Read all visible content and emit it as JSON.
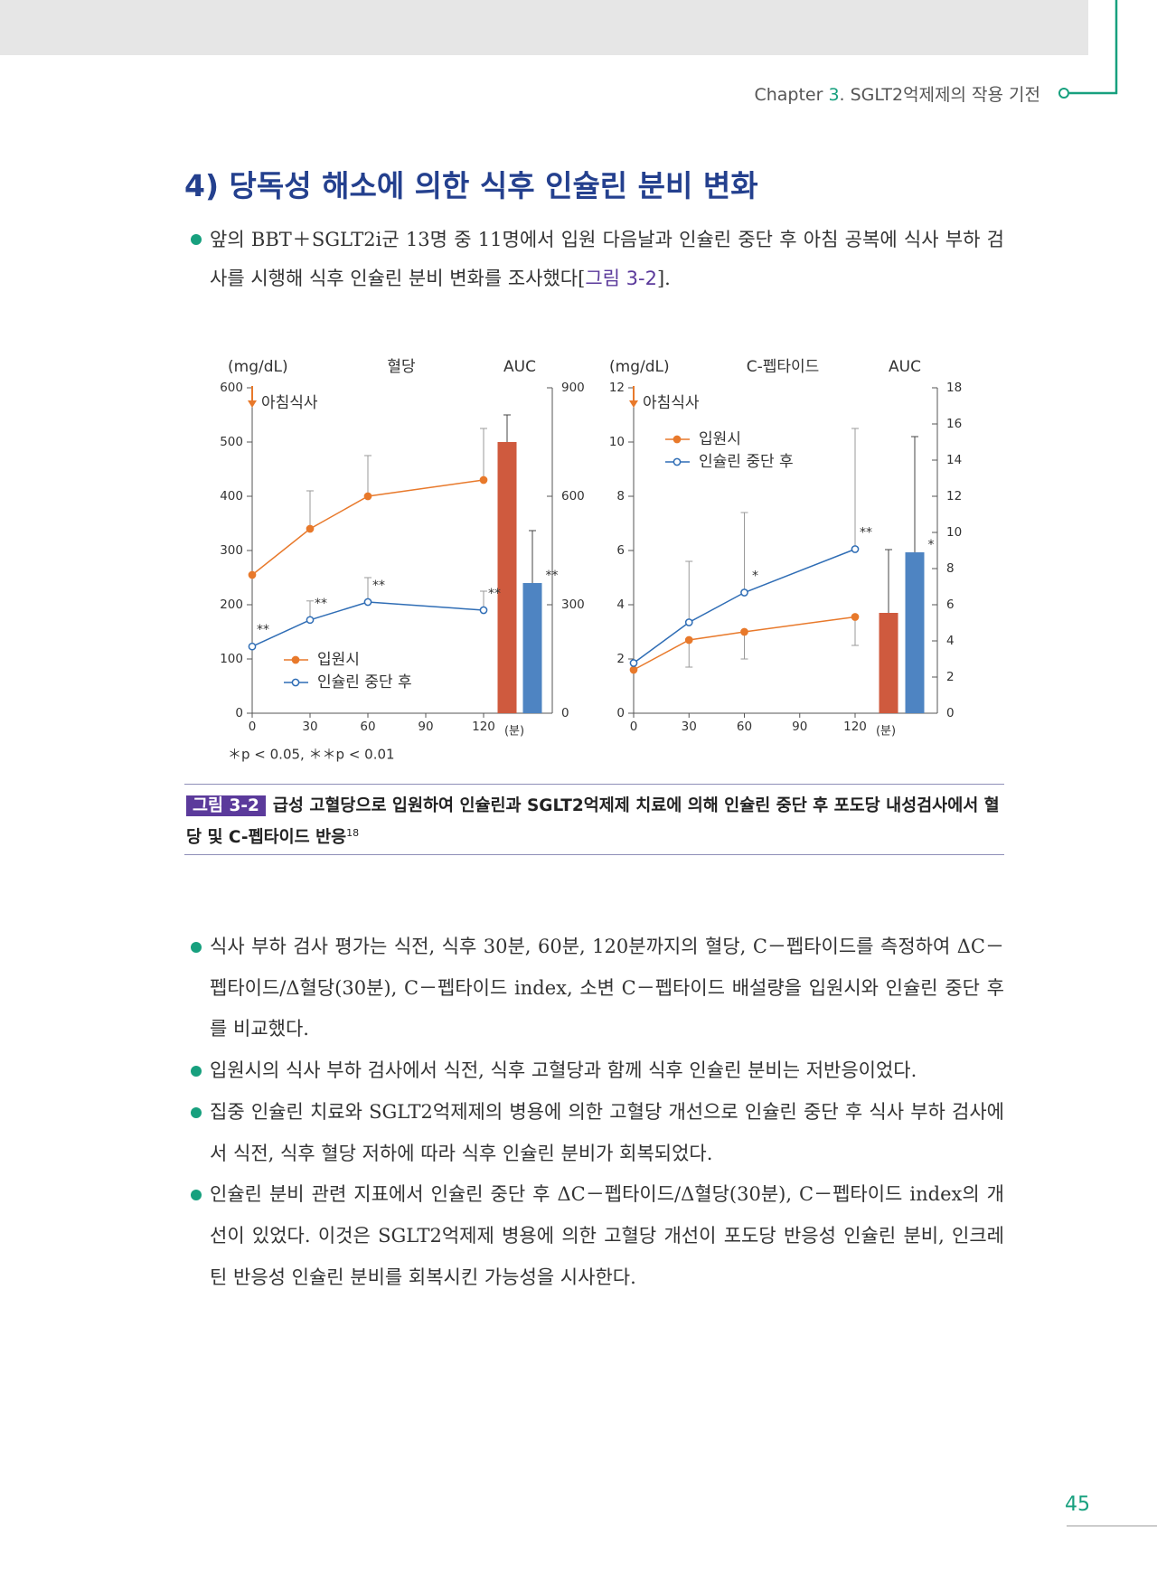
{
  "header": {
    "chapter": "Chapter",
    "number": "3",
    "title": ". SGLT2억제제의 작용 기전"
  },
  "section_title": "4) 당독성 해소에 의한 식후 인슐린 분비 변화",
  "intro": {
    "text": "앞의 BBT＋SGLT2i군 13명 중 11명에서 입원 다음날과 인슐린 중단 후 아침 공복에 식사 부하 검사를 시행해 식후 인슐린 분비 변화를 조사했다[",
    "ref": "그림 3-2",
    "end": "]."
  },
  "chart_data": [
    {
      "type": "line",
      "title": "혈당",
      "y_label": "(mg/dL)",
      "y2_label": "AUC",
      "x_unit": "(분)",
      "annotation": {
        "text": "아침식사",
        "x": 0
      },
      "xlim": [
        0,
        120
      ],
      "xticks": [
        0,
        30,
        60,
        90,
        120
      ],
      "ylim": [
        0,
        600
      ],
      "yticks": [
        0,
        100,
        200,
        300,
        400,
        500,
        600
      ],
      "y2lim": [
        0,
        900
      ],
      "y2ticks": [
        0,
        300,
        600,
        900
      ],
      "legend": "lower left",
      "x": [
        0,
        30,
        60,
        120
      ],
      "series": [
        {
          "name": "입원시",
          "color": "#e8792b",
          "values": [
            255,
            340,
            400,
            430
          ],
          "errors": [
            null,
            70,
            75,
            95
          ],
          "error_direction": "up",
          "significance": [
            null,
            null,
            null,
            null
          ]
        },
        {
          "name": "인슐린 중단 후",
          "color": "#2f6db5",
          "values": [
            123,
            172,
            205,
            190
          ],
          "errors": [
            null,
            35,
            45,
            35
          ],
          "error_direction": "up",
          "significance": [
            "**",
            "**",
            "**",
            "**"
          ]
        }
      ],
      "auc": {
        "values": [
          750,
          360
        ],
        "errors": [
          75,
          145
        ],
        "colors": [
          "#cf5a3e",
          "#4e84c2"
        ],
        "significance": [
          null,
          "**"
        ],
        "axis": "y2"
      },
      "note": "＊p < 0.05, ＊＊p < 0.01"
    },
    {
      "type": "line",
      "title": "C-펩타이드",
      "y_label": "(mg/dL)",
      "y2_label": "AUC",
      "x_unit": "(분)",
      "annotation": {
        "text": "아침식사",
        "x": 0
      },
      "xlim": [
        0,
        120
      ],
      "xticks": [
        0,
        30,
        60,
        90,
        120
      ],
      "ylim": [
        0,
        12
      ],
      "yticks": [
        0,
        2,
        4,
        6,
        8,
        10,
        12
      ],
      "y2lim": [
        0,
        18
      ],
      "y2ticks": [
        0,
        2,
        4,
        6,
        8,
        10,
        12,
        14,
        16,
        18
      ],
      "legend": "upper left",
      "x": [
        0,
        30,
        60,
        120
      ],
      "series": [
        {
          "name": "입원시",
          "color": "#e8792b",
          "values": [
            1.6,
            2.7,
            3.0,
            3.55
          ],
          "errors": [
            null,
            1.0,
            1.0,
            1.05
          ],
          "error_direction": "down",
          "significance": [
            null,
            null,
            null,
            null
          ]
        },
        {
          "name": "인슐린 중단 후",
          "color": "#2f6db5",
          "values": [
            1.85,
            3.35,
            4.45,
            6.05
          ],
          "errors": [
            null,
            2.25,
            2.95,
            4.45
          ],
          "error_direction": "up",
          "significance": [
            null,
            null,
            "*",
            "**"
          ]
        }
      ],
      "auc": {
        "values": [
          5.55,
          8.9
        ],
        "errors": [
          3.5,
          6.4
        ],
        "colors": [
          "#cf5a3e",
          "#4e84c2"
        ],
        "significance": [
          null,
          "*"
        ],
        "axis": "y2"
      }
    }
  ],
  "figure": {
    "label": "그림 3-2",
    "caption": "급성 고혈당으로 입원하여 인슐린과 SGLT2억제제 치료에 의해 인슐린 중단 후 포도당 내성검사에서 혈당 및 C-펩타이드 반응",
    "ref": "18"
  },
  "bullets": [
    "식사 부하 검사 평가는 식전, 식후 30분, 60분, 120분까지의 혈당, C－펩타이드를 측정하여 ΔC－펩타이드/Δ혈당(30분), C－펩타이드 index, 소변 C－펩타이드 배설량을 입원시와 인슐린 중단 후를 비교했다.",
    "입원시의 식사 부하 검사에서 식전, 식후 고혈당과 함께 식후 인슐린 분비는 저반응이었다.",
    "집중 인슐린 치료와 SGLT2억제제의 병용에 의한 고혈당 개선으로 인슐린 중단 후 식사 부하 검사에서 식전, 식후 혈당 저하에 따라 식후 인슐린 분비가 회복되었다.",
    "인슐린 분비 관련 지표에서 인슐린 중단 후 ΔC－펩타이드/Δ혈당(30분), C－펩타이드 index의 개선이 있었다. 이것은 SGLT2억제제 병용에 의한 고혈당 개선이 포도당 반응성 인슐린 분비, 인크레틴 반응성 인슐린 분비를 회복시킨 가능성을 시사한다."
  ],
  "page_number": "45"
}
